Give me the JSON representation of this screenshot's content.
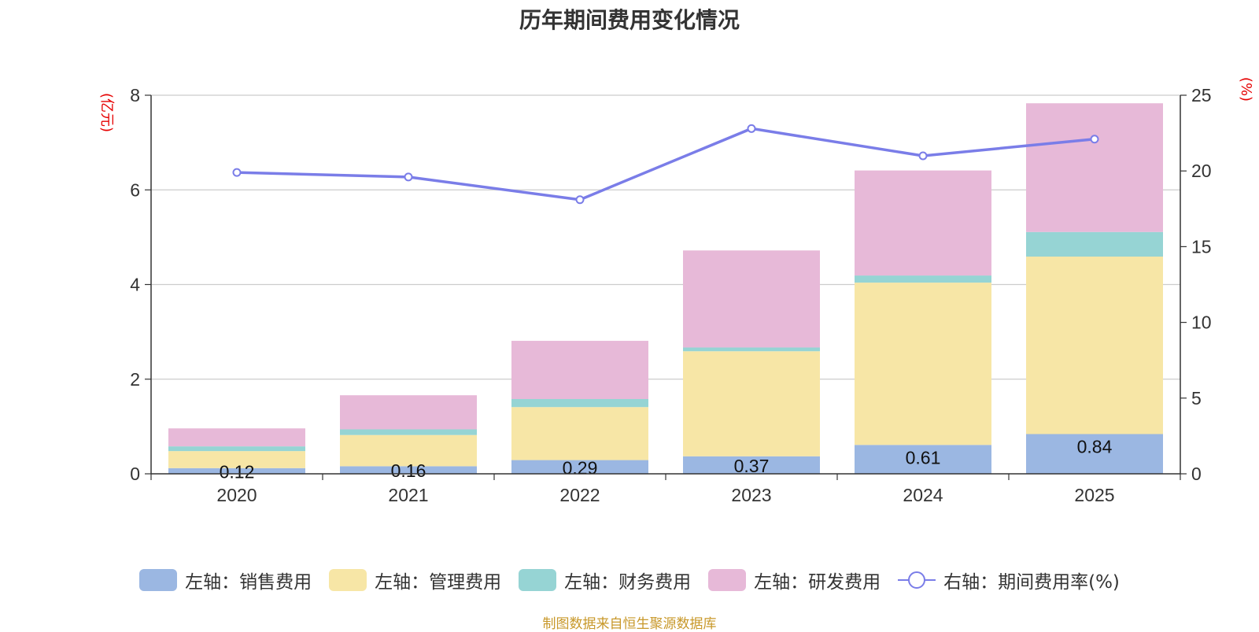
{
  "chart_data": {
    "type": "bar",
    "title": "历年期间费用变化情况",
    "left_unit": "(亿元)",
    "right_unit": "(%)",
    "categories": [
      "2020",
      "2021",
      "2022",
      "2023",
      "2024",
      "2025"
    ],
    "ylim_left": [
      0,
      8
    ],
    "yticks_left": [
      "0",
      "2",
      "4",
      "6",
      "8"
    ],
    "ylim_right": [
      0,
      25
    ],
    "yticks_right": [
      "0",
      "5",
      "10",
      "15",
      "20",
      "25"
    ],
    "series": [
      {
        "name": "左轴：销售费用",
        "axis": "left",
        "stack": true,
        "color": "#9bb7e2",
        "values": [
          0.12,
          0.16,
          0.29,
          0.37,
          0.61,
          0.84
        ],
        "labels": [
          "0.12",
          "0.16",
          "0.29",
          "0.37",
          "0.61",
          "0.84"
        ]
      },
      {
        "name": "左轴：管理费用",
        "axis": "left",
        "stack": true,
        "color": "#f7e6a6",
        "values": [
          0.36,
          0.66,
          1.12,
          2.22,
          3.43,
          3.75
        ]
      },
      {
        "name": "左轴：财务费用",
        "axis": "left",
        "stack": true,
        "color": "#96d4d4",
        "values": [
          0.1,
          0.12,
          0.17,
          0.08,
          0.15,
          0.52
        ]
      },
      {
        "name": "左轴：研发费用",
        "axis": "left",
        "stack": true,
        "color": "#e7b9d8",
        "values": [
          0.38,
          0.72,
          1.23,
          2.05,
          2.22,
          2.72
        ]
      },
      {
        "name": "右轴：期间费用率(%)",
        "axis": "right",
        "type": "line",
        "color": "#7a7de8",
        "values": [
          19.9,
          19.6,
          18.1,
          22.8,
          21.0,
          22.1
        ]
      }
    ],
    "legend_position": "bottom",
    "source": "制图数据来自恒生聚源数据库"
  }
}
